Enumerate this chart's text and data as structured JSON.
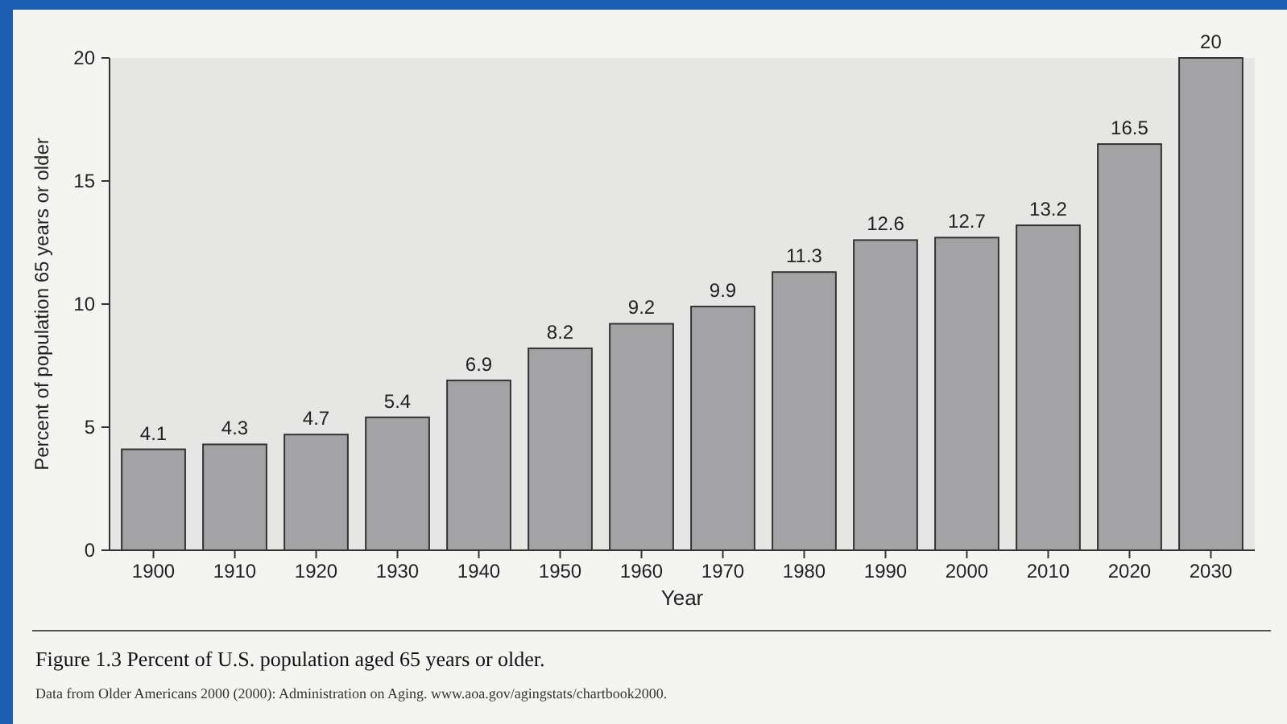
{
  "chart_data": {
    "type": "bar",
    "title": "Figure 1.3 Percent of U.S. population aged 65 years or older.",
    "xlabel": "Year",
    "ylabel": "Percent of population 65 years or older",
    "categories": [
      "1900",
      "1910",
      "1920",
      "1930",
      "1940",
      "1950",
      "1960",
      "1970",
      "1980",
      "1990",
      "2000",
      "2010",
      "2020",
      "2030"
    ],
    "values": [
      4.1,
      4.3,
      4.7,
      5.4,
      6.9,
      8.2,
      9.2,
      9.9,
      11.3,
      12.6,
      12.7,
      13.2,
      16.5,
      20
    ],
    "color": "#a3a3a5",
    "ylim": [
      0,
      20
    ],
    "yticks": [
      0,
      5,
      10,
      15,
      20
    ],
    "data_labels": true,
    "annotations": [
      "Data from Older Americans 2000 (2000): Administration on Aging. www.aoa.gov/agingstats/chartbook2000."
    ]
  }
}
